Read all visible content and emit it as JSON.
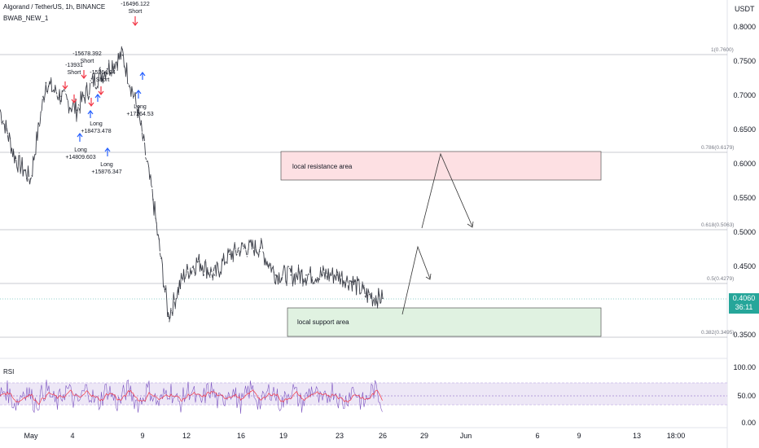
{
  "header": {
    "title": "Algorand / TetherUS, 1h, BINANCE",
    "indicator": "BWAB_NEW_1"
  },
  "price_axis": {
    "unit": "USDT",
    "labels": [
      "0.8000",
      "0.7500",
      "0.7000",
      "0.6500",
      "0.6000",
      "0.5500",
      "0.5000",
      "0.4500",
      "0.3500"
    ],
    "current_price": "0.4060",
    "countdown": "36:11"
  },
  "time_axis": [
    "May",
    "4",
    "9",
    "12",
    "16",
    "19",
    "23",
    "26",
    "29",
    "Jun",
    "6",
    "9",
    "13",
    "18:00"
  ],
  "fib_levels": [
    {
      "label": "1(0.7600)",
      "value": 0.76
    },
    {
      "label": "0.786(0.6179)",
      "value": 0.6179
    },
    {
      "label": "0.618(0.5063)",
      "value": 0.5063
    },
    {
      "label": "0.5(0.4279)",
      "value": 0.4279
    },
    {
      "label": "0.382(0.3495)",
      "value": 0.3495
    }
  ],
  "zones": {
    "resistance": {
      "label": "local resistance area",
      "top": 0.6179,
      "bottom": 0.575,
      "color": "#f9cbd0"
    },
    "support": {
      "label": "local support area",
      "top": 0.386,
      "bottom": 0.347,
      "color": "#c8e6c9"
    }
  },
  "trades": [
    {
      "type": "Short",
      "value": "-16496.122"
    },
    {
      "type": "Short",
      "value": "-15678.392"
    },
    {
      "type": "Short",
      "value": "-13931"
    },
    {
      "type": "Short",
      "value": "-15264.04"
    },
    {
      "type": "Long",
      "value": "+18473.478"
    },
    {
      "type": "Long",
      "value": "+14809.603"
    },
    {
      "type": "Long",
      "value": "+15876.347"
    },
    {
      "type": "Long",
      "value": "+17264.53"
    }
  ],
  "rsi": {
    "title": "RSI",
    "labels": [
      "100.00",
      "50.00",
      "0.00"
    ],
    "band_upper": 70,
    "band_lower": 30,
    "mid": 50
  },
  "colors": {
    "up": "#26a69a",
    "short_arrow": "#f23645",
    "long_arrow": "#2962ff",
    "rsi_line": "#7e57c2",
    "rsi_ma": "#f23645",
    "band": "#ede7f6"
  },
  "chart_data": {
    "type": "line",
    "title": "Algorand / TetherUS, 1h, BINANCE",
    "xlabel": "",
    "ylabel": "USDT",
    "ylim": [
      0.33,
      0.82
    ],
    "x": [
      "May 1",
      "May 2",
      "May 3",
      "May 4",
      "May 5",
      "May 6",
      "May 7",
      "May 8",
      "May 9",
      "May 10",
      "May 11",
      "May 12",
      "May 13",
      "May 14",
      "May 15",
      "May 16",
      "May 17",
      "May 18",
      "May 19",
      "May 20",
      "May 21",
      "May 22",
      "May 23",
      "May 24",
      "May 25",
      "May 26"
    ],
    "series": [
      {
        "values": [
          0.68,
          0.61,
          0.58,
          0.72,
          0.7,
          0.68,
          0.72,
          0.74,
          0.76,
          0.68,
          0.55,
          0.38,
          0.44,
          0.46,
          0.44,
          0.47,
          0.48,
          0.48,
          0.44,
          0.44,
          0.44,
          0.44,
          0.44,
          0.43,
          0.41,
          0.406
        ]
      }
    ],
    "legend": "none",
    "grid": false
  }
}
